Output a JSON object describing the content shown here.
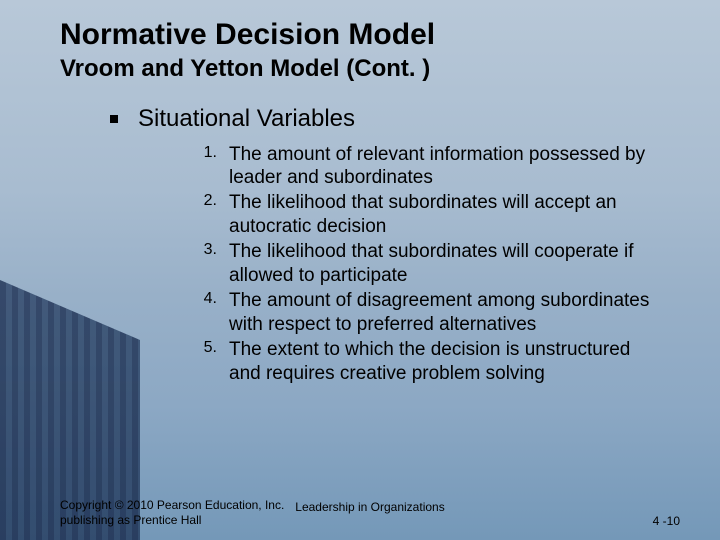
{
  "title": "Normative Decision Model",
  "subtitle": "Vroom and Yetton Model (Cont. )",
  "section_heading": "Situational Variables",
  "items": [
    {
      "n": "1.",
      "text": "The amount of relevant information possessed by leader and subordinates"
    },
    {
      "n": "2.",
      "text": "The likelihood that subordinates will accept an autocratic decision"
    },
    {
      "n": "3.",
      "text": "The likelihood that subordinates will cooperate if allowed to participate"
    },
    {
      "n": "4.",
      "text": "The amount of disagreement among subordinates with respect to preferred alternatives"
    },
    {
      "n": "5.",
      "text": "The extent to which the decision is unstructured and requires creative problem solving"
    }
  ],
  "footer": {
    "copyright": "Copyright © 2010 Pearson Education, Inc. publishing as Prentice Hall",
    "center": "Leadership in Organizations",
    "page": "4 -10"
  },
  "colors": {
    "text": "#000000",
    "bg_top": "#b8c8d8",
    "bg_bottom": "#7498b8"
  }
}
